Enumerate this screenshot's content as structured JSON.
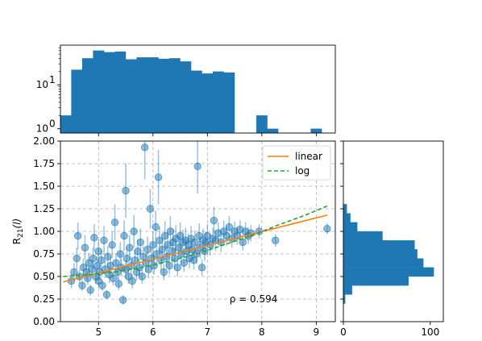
{
  "chart_data": [
    {
      "type": "scatter",
      "panel": "main",
      "xlabel": "",
      "ylabel": "R21(l)",
      "ylabel_main": "R",
      "ylabel_sub": "21",
      "ylabel_suffix": "(l)",
      "xlim": [
        4.3,
        9.35
      ],
      "ylim": [
        0.0,
        2.0
      ],
      "x_ticks": [
        5,
        6,
        7,
        8,
        9
      ],
      "x_tick_labels": [
        "5",
        "6",
        "7",
        "8",
        "9"
      ],
      "y_ticks": [
        0.0,
        0.25,
        0.5,
        0.75,
        1.0,
        1.25,
        1.5,
        1.75,
        2.0
      ],
      "y_tick_labels": [
        "0.00",
        "0.25",
        "0.50",
        "0.75",
        "1.00",
        "1.25",
        "1.50",
        "1.75",
        "2.00"
      ],
      "grid": true,
      "legend_placement": "upper-right",
      "marker_color": "#1f77b4",
      "annotation": {
        "text": "ρ = 0.594",
        "x": 7.85,
        "y": 0.25
      },
      "lines": [
        {
          "name": "linear",
          "color": "#ff7f0e",
          "dash": "solid",
          "x": [
            4.35,
            9.2
          ],
          "y": [
            0.44,
            1.18
          ]
        },
        {
          "name": "log",
          "color": "#2ca02c",
          "dash": "dashed",
          "x": [
            4.35,
            4.8,
            5.3,
            5.8,
            6.3,
            6.8,
            7.3,
            7.8,
            8.3,
            8.8,
            9.2
          ],
          "y": [
            0.5,
            0.52,
            0.55,
            0.6,
            0.67,
            0.75,
            0.85,
            0.95,
            1.07,
            1.18,
            1.28
          ]
        }
      ],
      "points": [
        {
          "x": 4.5,
          "y": 0.45,
          "err": 0.08
        },
        {
          "x": 4.55,
          "y": 0.55,
          "err": 0.1
        },
        {
          "x": 4.6,
          "y": 0.7,
          "err": 0.12
        },
        {
          "x": 4.62,
          "y": 0.95,
          "err": 0.15
        },
        {
          "x": 4.65,
          "y": 0.5,
          "err": 0.08
        },
        {
          "x": 4.7,
          "y": 0.4,
          "err": 0.06
        },
        {
          "x": 4.72,
          "y": 0.6,
          "err": 0.1
        },
        {
          "x": 4.75,
          "y": 0.82,
          "err": 0.14
        },
        {
          "x": 4.78,
          "y": 0.55,
          "err": 0.09
        },
        {
          "x": 4.8,
          "y": 0.48,
          "err": 0.07
        },
        {
          "x": 4.82,
          "y": 0.65,
          "err": 0.11
        },
        {
          "x": 4.85,
          "y": 0.35,
          "err": 0.06
        },
        {
          "x": 4.88,
          "y": 0.58,
          "err": 0.1
        },
        {
          "x": 4.9,
          "y": 0.7,
          "err": 0.12
        },
        {
          "x": 4.92,
          "y": 0.93,
          "err": 0.15
        },
        {
          "x": 4.95,
          "y": 0.5,
          "err": 0.08
        },
        {
          "x": 4.97,
          "y": 0.62,
          "err": 0.1
        },
        {
          "x": 5.0,
          "y": 0.45,
          "err": 0.07
        },
        {
          "x": 5.0,
          "y": 0.78,
          "err": 0.13
        },
        {
          "x": 5.02,
          "y": 0.55,
          "err": 0.09
        },
        {
          "x": 5.05,
          "y": 0.68,
          "err": 0.11
        },
        {
          "x": 5.07,
          "y": 0.4,
          "err": 0.06
        },
        {
          "x": 5.1,
          "y": 0.9,
          "err": 0.16
        },
        {
          "x": 5.12,
          "y": 0.58,
          "err": 0.1
        },
        {
          "x": 5.15,
          "y": 0.3,
          "err": 0.05
        },
        {
          "x": 5.17,
          "y": 0.72,
          "err": 0.12
        },
        {
          "x": 5.2,
          "y": 0.52,
          "err": 0.09
        },
        {
          "x": 5.22,
          "y": 0.62,
          "err": 0.1
        },
        {
          "x": 5.25,
          "y": 0.85,
          "err": 0.15
        },
        {
          "x": 5.27,
          "y": 0.48,
          "err": 0.08
        },
        {
          "x": 5.3,
          "y": 1.1,
          "err": 0.2
        },
        {
          "x": 5.32,
          "y": 0.65,
          "err": 0.11
        },
        {
          "x": 5.35,
          "y": 0.55,
          "err": 0.09
        },
        {
          "x": 5.37,
          "y": 0.42,
          "err": 0.07
        },
        {
          "x": 5.4,
          "y": 0.75,
          "err": 0.13
        },
        {
          "x": 5.42,
          "y": 0.6,
          "err": 0.1
        },
        {
          "x": 5.45,
          "y": 0.24,
          "err": 0.05
        },
        {
          "x": 5.47,
          "y": 0.95,
          "err": 0.17
        },
        {
          "x": 5.5,
          "y": 1.45,
          "err": 0.3
        },
        {
          "x": 5.5,
          "y": 0.58,
          "err": 0.1
        },
        {
          "x": 5.52,
          "y": 0.7,
          "err": 0.12
        },
        {
          "x": 5.55,
          "y": 0.5,
          "err": 0.08
        },
        {
          "x": 5.57,
          "y": 0.82,
          "err": 0.14
        },
        {
          "x": 5.6,
          "y": 0.62,
          "err": 0.1
        },
        {
          "x": 5.62,
          "y": 0.45,
          "err": 0.08
        },
        {
          "x": 5.65,
          "y": 1.0,
          "err": 0.18
        },
        {
          "x": 5.67,
          "y": 0.68,
          "err": 0.11
        },
        {
          "x": 5.7,
          "y": 0.55,
          "err": 0.09
        },
        {
          "x": 5.72,
          "y": 0.78,
          "err": 0.13
        },
        {
          "x": 5.75,
          "y": 0.6,
          "err": 0.1
        },
        {
          "x": 5.77,
          "y": 0.88,
          "err": 0.15
        },
        {
          "x": 5.8,
          "y": 0.5,
          "err": 0.08
        },
        {
          "x": 5.82,
          "y": 0.72,
          "err": 0.12
        },
        {
          "x": 5.85,
          "y": 1.93,
          "err": 0.35
        },
        {
          "x": 5.87,
          "y": 0.65,
          "err": 0.11
        },
        {
          "x": 5.9,
          "y": 0.8,
          "err": 0.14
        },
        {
          "x": 5.92,
          "y": 0.58,
          "err": 0.1
        },
        {
          "x": 5.95,
          "y": 1.25,
          "err": 0.22
        },
        {
          "x": 5.97,
          "y": 0.7,
          "err": 0.12
        },
        {
          "x": 6.0,
          "y": 0.85,
          "err": 0.15
        },
        {
          "x": 6.02,
          "y": 0.62,
          "err": 0.1
        },
        {
          "x": 6.05,
          "y": 1.05,
          "err": 0.18
        },
        {
          "x": 6.07,
          "y": 0.75,
          "err": 0.13
        },
        {
          "x": 6.1,
          "y": 1.6,
          "err": 0.3
        },
        {
          "x": 6.12,
          "y": 0.9,
          "err": 0.15
        },
        {
          "x": 6.15,
          "y": 0.68,
          "err": 0.11
        },
        {
          "x": 6.17,
          "y": 0.8,
          "err": 0.13
        },
        {
          "x": 6.2,
          "y": 0.55,
          "err": 0.09
        },
        {
          "x": 6.22,
          "y": 0.95,
          "err": 0.16
        },
        {
          "x": 6.25,
          "y": 0.72,
          "err": 0.12
        },
        {
          "x": 6.27,
          "y": 0.85,
          "err": 0.14
        },
        {
          "x": 6.3,
          "y": 0.62,
          "err": 0.1
        },
        {
          "x": 6.32,
          "y": 1.0,
          "err": 0.17
        },
        {
          "x": 6.35,
          "y": 0.78,
          "err": 0.13
        },
        {
          "x": 6.37,
          "y": 0.88,
          "err": 0.15
        },
        {
          "x": 6.4,
          "y": 0.7,
          "err": 0.12
        },
        {
          "x": 6.42,
          "y": 0.92,
          "err": 0.15
        },
        {
          "x": 6.45,
          "y": 0.6,
          "err": 0.1
        },
        {
          "x": 6.47,
          "y": 0.82,
          "err": 0.13
        },
        {
          "x": 6.5,
          "y": 0.95,
          "err": 0.15
        },
        {
          "x": 6.52,
          "y": 0.75,
          "err": 0.12
        },
        {
          "x": 6.55,
          "y": 0.88,
          "err": 0.14
        },
        {
          "x": 6.57,
          "y": 0.65,
          "err": 0.1
        },
        {
          "x": 6.6,
          "y": 0.9,
          "err": 0.14
        },
        {
          "x": 6.62,
          "y": 0.78,
          "err": 0.12
        },
        {
          "x": 6.65,
          "y": 0.85,
          "err": 0.13
        },
        {
          "x": 6.67,
          "y": 0.7,
          "err": 0.11
        },
        {
          "x": 6.7,
          "y": 0.92,
          "err": 0.14
        },
        {
          "x": 6.72,
          "y": 0.8,
          "err": 0.12
        },
        {
          "x": 6.75,
          "y": 0.68,
          "err": 0.1
        },
        {
          "x": 6.77,
          "y": 0.88,
          "err": 0.13
        },
        {
          "x": 6.8,
          "y": 0.75,
          "err": 0.11
        },
        {
          "x": 6.82,
          "y": 1.72,
          "err": 0.3
        },
        {
          "x": 6.85,
          "y": 0.95,
          "err": 0.14
        },
        {
          "x": 6.87,
          "y": 0.82,
          "err": 0.12
        },
        {
          "x": 6.9,
          "y": 0.6,
          "err": 0.09
        },
        {
          "x": 6.92,
          "y": 0.9,
          "err": 0.13
        },
        {
          "x": 6.95,
          "y": 0.78,
          "err": 0.11
        },
        {
          "x": 6.97,
          "y": 0.88,
          "err": 0.12
        },
        {
          "x": 7.0,
          "y": 0.95,
          "err": 0.13
        },
        {
          "x": 7.05,
          "y": 0.85,
          "err": 0.12
        },
        {
          "x": 7.1,
          "y": 0.92,
          "err": 0.12
        },
        {
          "x": 7.12,
          "y": 1.12,
          "err": 0.15
        },
        {
          "x": 7.15,
          "y": 0.9,
          "err": 0.12
        },
        {
          "x": 7.2,
          "y": 0.98,
          "err": 0.12
        },
        {
          "x": 7.25,
          "y": 0.88,
          "err": 0.11
        },
        {
          "x": 7.3,
          "y": 1.0,
          "err": 0.12
        },
        {
          "x": 7.35,
          "y": 0.95,
          "err": 0.11
        },
        {
          "x": 7.4,
          "y": 1.05,
          "err": 0.12
        },
        {
          "x": 7.45,
          "y": 0.92,
          "err": 0.1
        },
        {
          "x": 7.5,
          "y": 1.0,
          "err": 0.11
        },
        {
          "x": 7.55,
          "y": 0.95,
          "err": 0.1
        },
        {
          "x": 7.6,
          "y": 1.02,
          "err": 0.1
        },
        {
          "x": 7.65,
          "y": 0.88,
          "err": 0.09
        },
        {
          "x": 7.7,
          "y": 1.0,
          "err": 0.1
        },
        {
          "x": 7.75,
          "y": 0.95,
          "err": 0.09
        },
        {
          "x": 7.8,
          "y": 0.98,
          "err": 0.09
        },
        {
          "x": 7.95,
          "y": 1.0,
          "err": 0.08
        },
        {
          "x": 8.25,
          "y": 0.9,
          "err": 0.07
        },
        {
          "x": 9.2,
          "y": 1.03,
          "err": 0.06
        }
      ]
    },
    {
      "type": "bar",
      "panel": "top-histogram",
      "scale": "log",
      "xlim": [
        4.3,
        9.35
      ],
      "ylim": [
        0.8,
        80
      ],
      "y_ticks": [
        1,
        10
      ],
      "y_tick_labels_base": [
        "10",
        "10"
      ],
      "y_tick_labels_exp": [
        "0",
        "1"
      ],
      "bin_edges": [
        4.3,
        4.5,
        4.7,
        4.9,
        5.1,
        5.3,
        5.5,
        5.7,
        5.9,
        6.1,
        6.3,
        6.5,
        6.7,
        6.9,
        7.1,
        7.3,
        7.5,
        7.7,
        7.9,
        8.1,
        8.3,
        8.5,
        8.7,
        8.9,
        9.1,
        9.3
      ],
      "values": [
        2,
        22,
        40,
        60,
        55,
        57,
        38,
        42,
        42,
        39,
        40,
        34,
        21,
        18,
        20,
        19,
        0,
        0,
        2,
        1,
        0,
        0,
        0,
        1,
        0
      ],
      "color": "#1f77b4"
    },
    {
      "type": "bar",
      "panel": "right-histogram",
      "orientation": "horizontal",
      "xlim": [
        0,
        115
      ],
      "ylim": [
        0.0,
        2.0
      ],
      "x_ticks": [
        0,
        100
      ],
      "x_tick_labels": [
        "0",
        "100"
      ],
      "bin_edges": [
        0.2,
        0.3,
        0.4,
        0.5,
        0.6,
        0.7,
        0.8,
        0.9,
        1.0,
        1.1,
        1.2,
        1.3
      ],
      "values": [
        2,
        10,
        75,
        104,
        92,
        85,
        82,
        45,
        16,
        8,
        4
      ],
      "color": "#1f77b4"
    }
  ]
}
